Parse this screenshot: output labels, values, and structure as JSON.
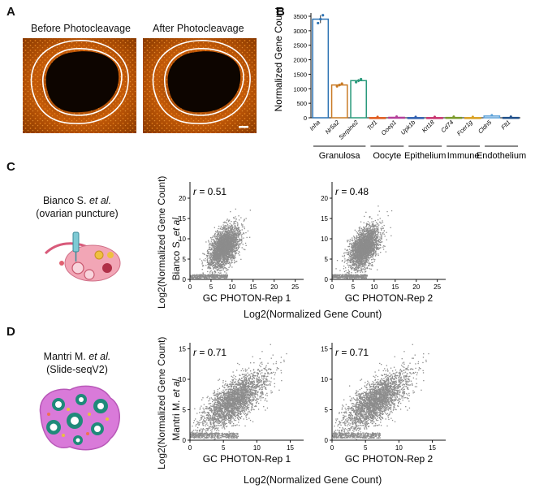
{
  "panels": {
    "A": {
      "label": "A",
      "before_title": "Before Photocleavage",
      "after_title": "After Photocleavage"
    },
    "B": {
      "label": "B",
      "chart_data": {
        "type": "bar",
        "ylabel": "Normalized Gene Count",
        "ylim": [
          0,
          3500
        ],
        "yticks": [
          "0",
          "500",
          "1000",
          "1500",
          "2000",
          "2500",
          "3000",
          "3500"
        ],
        "categories": [
          "Inha",
          "Nr5a2",
          "Serpine2",
          "Tcf1",
          "Ooep1",
          "Upk1b",
          "Krt18",
          "Cd74",
          "Fcer1g",
          "Cldn5",
          "Flt1"
        ],
        "values": [
          3400,
          1130,
          1280,
          5,
          15,
          5,
          5,
          10,
          5,
          60,
          10
        ],
        "colors": [
          "#2c72b3",
          "#c97a24",
          "#2a9a7c",
          "#e05a1c",
          "#b4409a",
          "#2f5fb0",
          "#c8336e",
          "#7a9a2a",
          "#d9a020",
          "#5aa0d8",
          "#1f4f8a"
        ],
        "groups": [
          {
            "name": "Granulosa",
            "from": 0,
            "to": 2
          },
          {
            "name": "Oocyte",
            "from": 3,
            "to": 4
          },
          {
            "name": "Epithelium",
            "from": 5,
            "to": 6
          },
          {
            "name": "Immune",
            "from": 7,
            "to": 8
          },
          {
            "name": "Endothelium",
            "from": 9,
            "to": 10
          }
        ]
      }
    },
    "C": {
      "label": "C",
      "study_name": "Bianco S.",
      "study_etal": "et al.",
      "study_method": "(ovarian puncture)",
      "ylabel_line1_name": "Bianco S.",
      "ylabel_line1_etal": "et al.",
      "ylabel_line2": "Log2(Normalized Gene Count)",
      "xlabel_common": "Log2(Normalized Gene Count)",
      "chart_data": [
        {
          "type": "scatter",
          "xlabel": "GC PHOTON-Rep 1",
          "r_symbol": "r",
          "r_value": "= 0.51",
          "xticks": [
            "0",
            "5",
            "10",
            "15",
            "20",
            "25"
          ],
          "yticks": [
            "0",
            "5",
            "10",
            "15",
            "20"
          ],
          "xlim": [
            0,
            27
          ],
          "ylim": [
            0,
            24
          ],
          "center": [
            8,
            8
          ],
          "spread": [
            1.8,
            2.6
          ]
        },
        {
          "type": "scatter",
          "xlabel": "GC PHOTON-Rep 2",
          "r_symbol": "r",
          "r_value": "= 0.48",
          "xticks": [
            "0",
            "5",
            "10",
            "15",
            "20",
            "25"
          ],
          "yticks": [
            "0",
            "5",
            "10",
            "15",
            "20"
          ],
          "xlim": [
            0,
            27
          ],
          "ylim": [
            0,
            24
          ],
          "center": [
            7.5,
            8
          ],
          "spread": [
            1.8,
            2.6
          ]
        }
      ]
    },
    "D": {
      "label": "D",
      "study_name": "Mantri M.",
      "study_etal": "et al.",
      "study_method": "(Slide-seqV2)",
      "ylabel_line1_name": "Mantri M.",
      "ylabel_line1_etal": "et al.",
      "ylabel_line2": "Log2(Normalized Gene Count)",
      "xlabel_common": "Log2(Normalized Gene Count)",
      "chart_data": [
        {
          "type": "scatter",
          "xlabel": "GC PHOTON-Rep 1",
          "r_symbol": "r",
          "r_value": "= 0.71",
          "xticks": [
            "0",
            "5",
            "10",
            "15"
          ],
          "yticks": [
            "0",
            "5",
            "10",
            "15"
          ],
          "xlim": [
            0,
            17
          ],
          "ylim": [
            0,
            16
          ],
          "center": [
            6.5,
            6.5
          ],
          "spread": [
            2.4,
            2.4
          ]
        },
        {
          "type": "scatter",
          "xlabel": "GC PHOTON-Rep 2",
          "r_symbol": "r",
          "r_value": "= 0.71",
          "xticks": [
            "0",
            "5",
            "10",
            "15"
          ],
          "yticks": [
            "0",
            "5",
            "10",
            "15"
          ],
          "xlim": [
            0,
            17
          ],
          "ylim": [
            0,
            16
          ],
          "center": [
            6.5,
            6.5
          ],
          "spread": [
            2.4,
            2.4
          ]
        }
      ]
    }
  }
}
